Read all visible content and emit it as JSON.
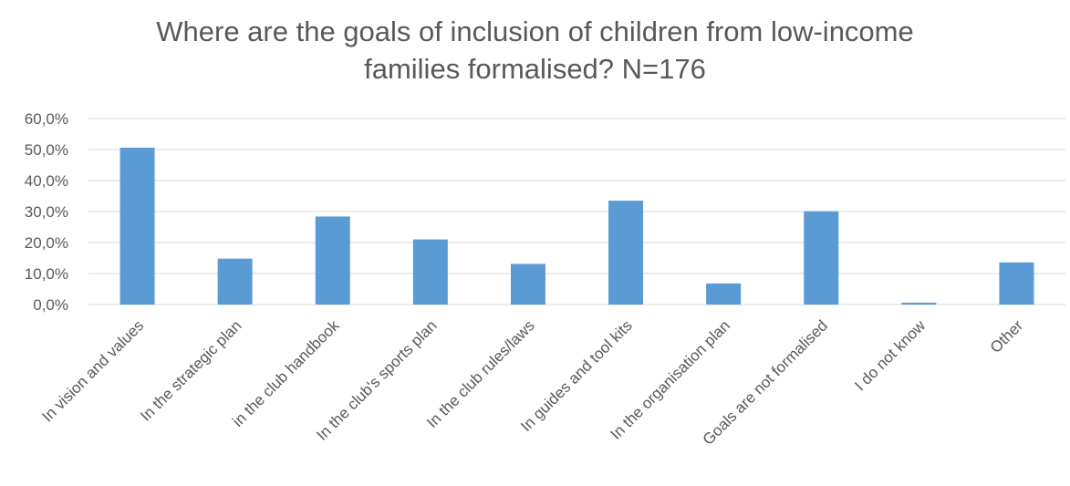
{
  "chart_data": {
    "type": "bar",
    "title_lines": [
      "Where are the goals of inclusion of children from low-income",
      "families formalised? N=176"
    ],
    "categories": [
      "In vision and values",
      "In the strategic plan",
      "in the club handbook",
      "In the club's sports plan",
      "In the club rules/laws",
      "In guides and tool kits",
      "In the organisation plan",
      "Goals are not formalised",
      "I do not know",
      "Other"
    ],
    "series": [
      {
        "values": [
          50.6,
          14.8,
          28.4,
          21.0,
          13.1,
          33.5,
          6.8,
          30.1,
          0.6,
          13.6
        ]
      }
    ],
    "ylim": [
      0,
      60
    ],
    "yticks": [
      0,
      10,
      20,
      30,
      40,
      50,
      60
    ],
    "ytick_labels": [
      "0,0%",
      "10,0%",
      "20,0%",
      "30,0%",
      "40,0%",
      "50,0%",
      "60,0%"
    ],
    "xlabel": "",
    "ylabel": "",
    "grid": true,
    "legend": "none",
    "colors": {
      "bar": "#5B9BD5",
      "grid": "#D9D9D9",
      "text": "#595959"
    }
  }
}
